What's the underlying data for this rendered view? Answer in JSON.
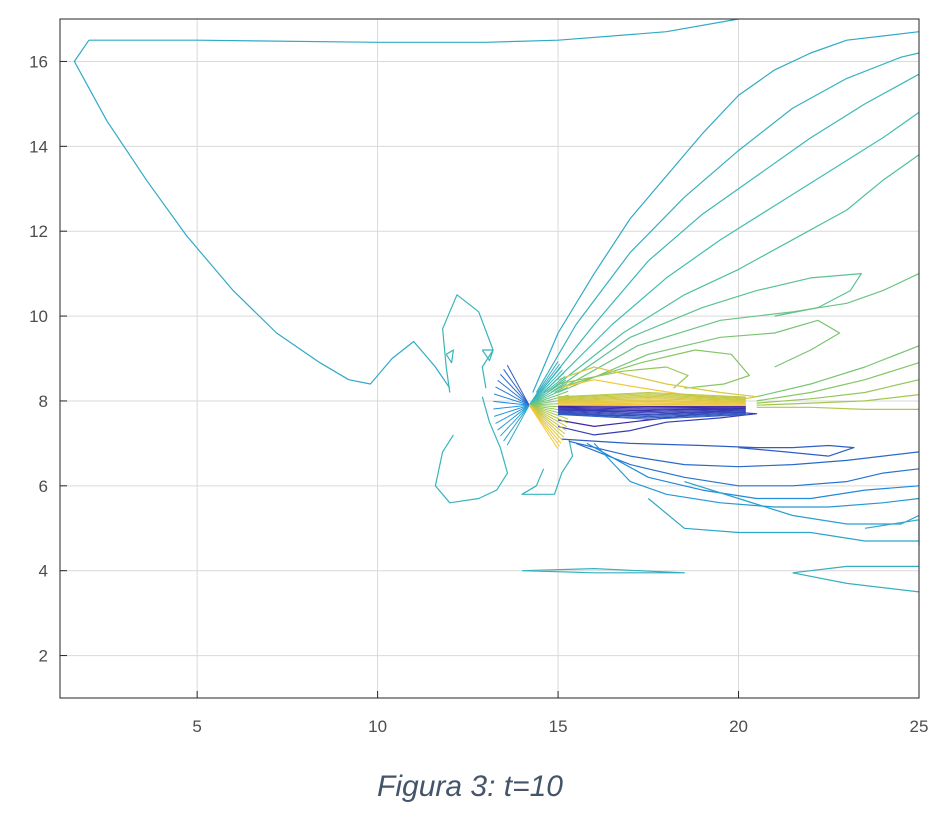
{
  "caption": "Figura 3: t=10",
  "chart_data": {
    "type": "contour",
    "title": "",
    "xlabel": "",
    "ylabel": "",
    "xlim": [
      1.2,
      25
    ],
    "ylim": [
      1,
      17
    ],
    "grid": true,
    "colormap": "parula",
    "colors": {
      "low": "#3e26a8",
      "mid_low": "#1f8fe0",
      "mid": "#3fbfb0",
      "mid_high": "#9bc850",
      "high": "#f5c83a",
      "frame": "#262626",
      "grid": "#d9d9d9"
    },
    "x_ticks": [
      5,
      10,
      15,
      20,
      25
    ],
    "y_ticks": [
      2,
      4,
      6,
      8,
      10,
      12,
      14,
      16
    ],
    "source_x": 14.2,
    "source_y": 7.9,
    "contours": [
      {
        "level": 0.02,
        "points": [
          [
            2.0,
            16.5
          ],
          [
            5,
            16.5
          ],
          [
            10,
            16.45
          ],
          [
            13,
            16.45
          ],
          [
            15,
            16.5
          ],
          [
            18,
            16.7
          ],
          [
            20,
            17
          ]
        ]
      },
      {
        "level": 0.02,
        "points": [
          [
            2.0,
            16.5
          ],
          [
            1.6,
            16
          ],
          [
            2.5,
            14.6
          ],
          [
            3.6,
            13.2
          ],
          [
            4.7,
            11.9
          ],
          [
            6,
            10.6
          ],
          [
            7.2,
            9.6
          ],
          [
            8.4,
            8.9
          ],
          [
            9.2,
            8.5
          ],
          [
            9.8,
            8.4
          ],
          [
            10.4,
            9.0
          ],
          [
            11,
            9.4
          ],
          [
            11.6,
            8.8
          ],
          [
            12,
            8.3
          ]
        ]
      },
      {
        "level": 0.05,
        "points": [
          [
            12,
            8.2
          ],
          [
            11.9,
            8.8
          ],
          [
            11.8,
            9.7
          ],
          [
            12.2,
            10.5
          ],
          [
            12.8,
            10.1
          ],
          [
            13.2,
            9.2
          ],
          [
            12.9,
            8.8
          ],
          [
            13,
            8.3
          ]
        ]
      },
      {
        "level": 0.05,
        "points": [
          [
            11.9,
            9.1
          ],
          [
            12.05,
            8.9
          ],
          [
            12.1,
            9.2
          ],
          [
            11.9,
            9.1
          ]
        ]
      },
      {
        "level": 0.05,
        "points": [
          [
            12.9,
            9.2
          ],
          [
            13.1,
            8.95
          ],
          [
            13.2,
            9.2
          ],
          [
            12.9,
            9.2
          ]
        ]
      },
      {
        "level": 0.05,
        "points": [
          [
            12.1,
            7.2
          ],
          [
            11.8,
            6.8
          ],
          [
            11.6,
            6.0
          ],
          [
            12,
            5.6
          ],
          [
            12.8,
            5.7
          ],
          [
            13.3,
            5.9
          ],
          [
            13.6,
            6.3
          ],
          [
            13.4,
            6.9
          ],
          [
            13.1,
            7.5
          ],
          [
            12.9,
            8.1
          ]
        ]
      },
      {
        "level": 0.05,
        "points": [
          [
            14.6,
            6.4
          ],
          [
            14.4,
            6.0
          ],
          [
            14,
            5.8
          ],
          [
            14.9,
            5.8
          ],
          [
            15.1,
            6.3
          ],
          [
            15.4,
            6.7
          ],
          [
            15.3,
            7.1
          ]
        ]
      },
      {
        "level": 0.02,
        "points": [
          [
            14.3,
            8.2
          ],
          [
            15,
            9.6
          ],
          [
            16,
            11
          ],
          [
            17,
            12.3
          ],
          [
            18,
            13.3
          ],
          [
            19,
            14.3
          ],
          [
            20,
            15.2
          ],
          [
            21,
            15.8
          ],
          [
            22,
            16.2
          ],
          [
            23,
            16.5
          ],
          [
            25,
            16.7
          ]
        ]
      },
      {
        "level": 0.04,
        "points": [
          [
            14.4,
            8.2
          ],
          [
            15.5,
            9.8
          ],
          [
            17,
            11.5
          ],
          [
            18.5,
            12.8
          ],
          [
            20,
            13.9
          ],
          [
            21.5,
            14.9
          ],
          [
            23,
            15.6
          ],
          [
            24.5,
            16.1
          ],
          [
            25,
            16.2
          ]
        ]
      },
      {
        "level": 0.06,
        "points": [
          [
            14.5,
            8.2
          ],
          [
            16,
            9.8
          ],
          [
            17.5,
            11.3
          ],
          [
            19,
            12.4
          ],
          [
            20.5,
            13.3
          ],
          [
            22,
            14.2
          ],
          [
            23.5,
            15.0
          ],
          [
            25,
            15.7
          ]
        ]
      },
      {
        "level": 0.08,
        "points": [
          [
            14.6,
            8.2
          ],
          [
            16.5,
            9.8
          ],
          [
            18,
            10.9
          ],
          [
            19.5,
            11.8
          ],
          [
            21,
            12.6
          ],
          [
            22.5,
            13.4
          ],
          [
            24,
            14.2
          ],
          [
            25,
            14.8
          ]
        ]
      },
      {
        "level": 0.1,
        "points": [
          [
            14.7,
            8.2
          ],
          [
            16.8,
            9.6
          ],
          [
            18.5,
            10.5
          ],
          [
            20,
            11.1
          ],
          [
            21.5,
            11.8
          ],
          [
            23,
            12.5
          ],
          [
            24,
            13.2
          ],
          [
            25,
            13.8
          ]
        ]
      },
      {
        "level": 0.12,
        "points": [
          [
            14.8,
            8.2
          ],
          [
            17,
            9.5
          ],
          [
            19,
            10.2
          ],
          [
            20.5,
            10.6
          ],
          [
            22,
            10.9
          ],
          [
            23.4,
            11.0
          ],
          [
            23.1,
            10.6
          ],
          [
            22.2,
            10.2
          ],
          [
            21,
            10.0
          ]
        ]
      },
      {
        "level": 0.14,
        "points": [
          [
            14.9,
            8.2
          ],
          [
            17.2,
            9.3
          ],
          [
            19.5,
            9.9
          ],
          [
            21.5,
            10.1
          ],
          [
            23,
            10.3
          ],
          [
            24,
            10.6
          ],
          [
            25,
            11.0
          ]
        ]
      },
      {
        "level": 0.16,
        "points": [
          [
            15.0,
            8.2
          ],
          [
            17.5,
            9.1
          ],
          [
            19.5,
            9.5
          ],
          [
            21,
            9.6
          ],
          [
            22.2,
            9.9
          ],
          [
            22.8,
            9.6
          ],
          [
            22,
            9.2
          ],
          [
            21,
            8.8
          ]
        ]
      },
      {
        "level": 0.18,
        "points": [
          [
            15.0,
            8.3
          ],
          [
            17.3,
            8.9
          ],
          [
            18.8,
            9.2
          ],
          [
            19.8,
            9.1
          ],
          [
            20.3,
            8.6
          ],
          [
            19.6,
            8.4
          ],
          [
            18.5,
            8.3
          ]
        ]
      },
      {
        "level": 0.2,
        "points": [
          [
            15.0,
            8.4
          ],
          [
            16.8,
            8.7
          ],
          [
            18,
            8.8
          ],
          [
            18.6,
            8.6
          ],
          [
            18.2,
            8.3
          ]
        ]
      },
      {
        "level": 0.16,
        "points": [
          [
            20.5,
            8.1
          ],
          [
            22,
            8.4
          ],
          [
            23.5,
            8.8
          ],
          [
            25,
            9.3
          ]
        ]
      },
      {
        "level": 0.18,
        "points": [
          [
            20.5,
            8.0
          ],
          [
            22,
            8.2
          ],
          [
            23.5,
            8.5
          ],
          [
            25,
            8.9
          ]
        ]
      },
      {
        "level": 0.2,
        "points": [
          [
            20.5,
            7.95
          ],
          [
            22,
            8.05
          ],
          [
            23.5,
            8.2
          ],
          [
            25,
            8.5
          ]
        ]
      },
      {
        "level": 0.22,
        "points": [
          [
            20.5,
            7.9
          ],
          [
            22,
            7.95
          ],
          [
            23.5,
            8.0
          ],
          [
            25,
            8.15
          ]
        ]
      },
      {
        "level": 0.24,
        "points": [
          [
            20.5,
            7.85
          ],
          [
            22,
            7.85
          ],
          [
            23.5,
            7.8
          ],
          [
            25,
            7.8
          ]
        ]
      },
      {
        "level": -0.24,
        "points": [
          [
            15.1,
            7.1
          ],
          [
            17,
            7.0
          ],
          [
            19,
            6.95
          ],
          [
            20.5,
            6.9
          ],
          [
            21.5,
            6.9
          ],
          [
            22.5,
            6.95
          ],
          [
            23.2,
            6.9
          ],
          [
            22.5,
            6.7
          ],
          [
            21.3,
            6.8
          ],
          [
            20,
            6.9
          ]
        ]
      },
      {
        "level": -0.22,
        "points": [
          [
            15.3,
            7.05
          ],
          [
            17,
            6.7
          ],
          [
            18.5,
            6.5
          ],
          [
            20,
            6.45
          ],
          [
            21.5,
            6.5
          ],
          [
            23,
            6.6
          ],
          [
            24,
            6.7
          ],
          [
            25,
            6.8
          ]
        ]
      },
      {
        "level": -0.2,
        "points": [
          [
            15.5,
            7.0
          ],
          [
            17,
            6.5
          ],
          [
            18.5,
            6.2
          ],
          [
            20,
            6.0
          ],
          [
            21.5,
            6.0
          ],
          [
            23,
            6.1
          ],
          [
            24,
            6.3
          ],
          [
            25,
            6.4
          ]
        ]
      },
      {
        "level": -0.16,
        "points": [
          [
            15.8,
            7.0
          ],
          [
            17.5,
            6.2
          ],
          [
            19,
            5.9
          ],
          [
            20.5,
            5.7
          ],
          [
            22,
            5.7
          ],
          [
            23.5,
            5.9
          ],
          [
            25,
            6.0
          ]
        ]
      },
      {
        "level": -0.12,
        "points": [
          [
            16,
            7.0
          ],
          [
            17,
            6.1
          ],
          [
            18,
            5.8
          ],
          [
            19.5,
            5.6
          ],
          [
            21,
            5.5
          ],
          [
            22.5,
            5.5
          ],
          [
            24,
            5.6
          ],
          [
            25,
            5.7
          ]
        ]
      },
      {
        "level": -0.08,
        "points": [
          [
            18.5,
            6.1
          ],
          [
            20,
            5.7
          ],
          [
            21.5,
            5.3
          ],
          [
            23,
            5.1
          ],
          [
            24.5,
            5.1
          ],
          [
            25,
            5.3
          ]
        ]
      },
      {
        "level": -0.06,
        "points": [
          [
            17.5,
            5.7
          ],
          [
            18.5,
            5.0
          ],
          [
            20,
            4.9
          ],
          [
            22,
            4.9
          ],
          [
            23.5,
            4.7
          ],
          [
            25,
            4.7
          ]
        ]
      },
      {
        "level": -0.04,
        "points": [
          [
            23.5,
            5.0
          ],
          [
            25,
            5.2
          ],
          [
            25,
            4.6
          ]
        ]
      },
      {
        "level": -0.02,
        "points": [
          [
            14,
            4.0
          ],
          [
            16,
            3.95
          ],
          [
            18.5,
            3.95
          ],
          [
            16,
            4.05
          ],
          [
            14,
            4.0
          ]
        ]
      },
      {
        "level": -0.02,
        "points": [
          [
            21.5,
            3.95
          ],
          [
            23,
            4.1
          ],
          [
            25,
            4.1
          ]
        ]
      },
      {
        "level": -0.02,
        "points": [
          [
            21.5,
            3.95
          ],
          [
            23,
            3.7
          ],
          [
            25,
            3.5
          ]
        ]
      },
      {
        "level": 0.3,
        "points": [
          [
            15.0,
            8.5
          ],
          [
            16,
            8.8
          ],
          [
            17,
            8.6
          ],
          [
            18,
            8.4
          ],
          [
            19.5,
            8.2
          ],
          [
            20.5,
            8.1
          ],
          [
            19.5,
            7.95
          ],
          [
            18,
            7.9
          ],
          [
            16.5,
            7.95
          ],
          [
            15.0,
            8.0
          ]
        ]
      },
      {
        "level": 0.34,
        "points": [
          [
            15.0,
            8.3
          ],
          [
            16,
            8.5
          ],
          [
            17,
            8.35
          ],
          [
            18.5,
            8.15
          ],
          [
            19.5,
            8.05
          ],
          [
            18.5,
            7.95
          ],
          [
            16.5,
            7.9
          ],
          [
            15.0,
            7.95
          ]
        ]
      },
      {
        "level": -0.3,
        "points": [
          [
            15.0,
            7.4
          ],
          [
            16,
            7.2
          ],
          [
            17,
            7.3
          ],
          [
            18,
            7.5
          ],
          [
            19.5,
            7.6
          ],
          [
            20.5,
            7.7
          ],
          [
            19.5,
            7.75
          ],
          [
            18,
            7.7
          ],
          [
            16.5,
            7.65
          ],
          [
            15.0,
            7.7
          ]
        ]
      },
      {
        "level": -0.34,
        "points": [
          [
            15.0,
            7.55
          ],
          [
            16,
            7.4
          ],
          [
            17.5,
            7.55
          ],
          [
            19,
            7.7
          ],
          [
            19.8,
            7.8
          ],
          [
            18.5,
            7.8
          ],
          [
            16.5,
            7.75
          ],
          [
            15.0,
            7.8
          ]
        ]
      }
    ]
  }
}
